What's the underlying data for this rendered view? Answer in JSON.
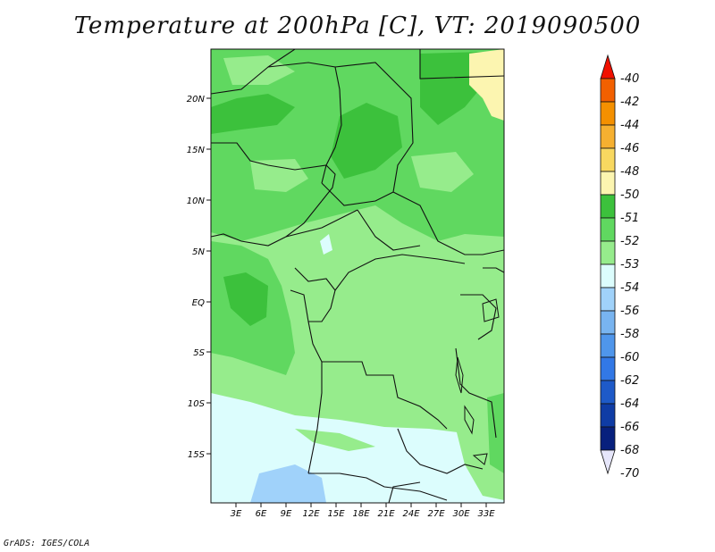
{
  "title": "Temperature at 200hPa [C], VT: 2019090500",
  "footer": "GrADS: IGES/COLA",
  "lat_ticks": [
    "20N",
    "15N",
    "10N",
    "5N",
    "EQ",
    "5S",
    "10S",
    "15S"
  ],
  "lon_ticks": [
    "3E",
    "6E",
    "9E",
    "12E",
    "15E",
    "18E",
    "21E",
    "24E",
    "27E",
    "30E",
    "33E"
  ],
  "colorbar": {
    "labels": [
      "-40",
      "-42",
      "-44",
      "-46",
      "-48",
      "-50",
      "-51",
      "-52",
      "-53",
      "-54",
      "-56",
      "-58",
      "-60",
      "-62",
      "-64",
      "-66",
      "-68",
      "-70"
    ],
    "colors": [
      "#f01000",
      "#f26000",
      "#f49000",
      "#f6b030",
      "#f8d860",
      "#fcf5b0",
      "#3cc13c",
      "#60d860",
      "#96ec8c",
      "#dcfdfd",
      "#a0d2fa",
      "#78b4f0",
      "#4f96eb",
      "#3278e6",
      "#1e5ac8",
      "#0f3ca5",
      "#07207d",
      "#e6e6fa"
    ]
  },
  "colors": {
    "c52": "#3cc13c",
    "c53": "#60d860",
    "c54": "#96ec8c",
    "c56": "#dcfdfd",
    "c58": "#a0d2fa",
    "c51": "#fcf5b0",
    "border": "#111111"
  }
}
